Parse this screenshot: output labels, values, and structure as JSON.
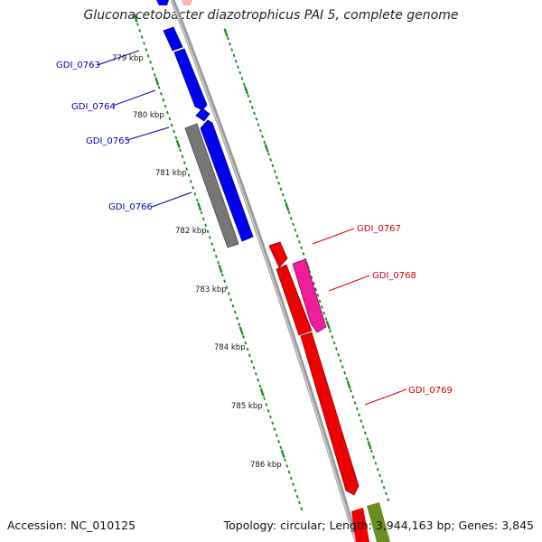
{
  "title": "Gluconacetobacter diazotrophicus PAI 5, complete genome",
  "accession": "Accession: NC_010125",
  "summary": "Topology: circular; Length: 3,944,163 bp; Genes: 3,845",
  "ticks": [
    "779 kbp",
    "780 kbp",
    "781 kbp",
    "782 kbp",
    "783 kbp",
    "784 kbp",
    "785 kbp",
    "786 kbp"
  ],
  "genes": [
    {
      "label": "GDI_0763",
      "strand": "reverse",
      "color": "#0000ee"
    },
    {
      "label": "GDI_0764",
      "strand": "reverse",
      "color": "#0000ee"
    },
    {
      "label": "GDI_0765",
      "strand": "reverse",
      "color": "#0000ee"
    },
    {
      "label": "GDI_0766",
      "strand": "reverse",
      "color": "#777777"
    },
    {
      "label": "GDI_0767",
      "strand": "forward",
      "color": "#ee0000"
    },
    {
      "label": "GDI_0768",
      "strand": "forward",
      "color": "#ee22aa"
    },
    {
      "label": "GDI_0769",
      "strand": "forward",
      "color": "#ee0000"
    }
  ],
  "colors": {
    "reverse_label": "#0000bb",
    "forward_label": "#cc0000",
    "backbone": "#888888",
    "tick_track": "#118811",
    "other_gene": "#6b8e23"
  }
}
